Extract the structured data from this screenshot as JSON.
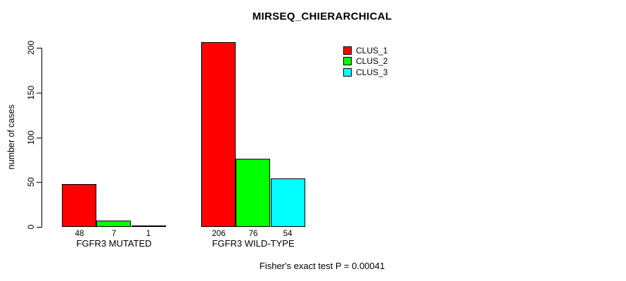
{
  "title": "MIRSEQ_CHIERARCHICAL",
  "ylabel": "number of cases",
  "footer": "Fisher's exact test P = 0.00041",
  "legend": {
    "items": [
      {
        "label": "CLUS_1",
        "color": "#ff0000"
      },
      {
        "label": "CLUS_2",
        "color": "#00ff00"
      },
      {
        "label": "CLUS_3",
        "color": "#00ffff"
      }
    ]
  },
  "colors": {
    "bar_border": "#000000",
    "axis": "#000000",
    "background": "#ffffff"
  },
  "chart_data": {
    "type": "bar",
    "title": "MIRSEQ_CHIERARCHICAL",
    "xlabel": "",
    "ylabel": "number of cases",
    "categories": [
      "FGFR3 MUTATED",
      "FGFR3 WILD-TYPE"
    ],
    "series": [
      {
        "name": "CLUS_1",
        "color": "#ff0000",
        "values": [
          48,
          206
        ]
      },
      {
        "name": "CLUS_2",
        "color": "#00ff00",
        "values": [
          7,
          76
        ]
      },
      {
        "name": "CLUS_3",
        "color": "#00ffff",
        "values": [
          1,
          54
        ]
      }
    ],
    "bar_value_labels": [
      [
        "48",
        "7",
        "1"
      ],
      [
        "206",
        "76",
        "54"
      ]
    ],
    "yticks": [
      0,
      50,
      100,
      150,
      200
    ],
    "ylim": [
      0,
      200
    ],
    "grid": false,
    "legend_position": "top-right",
    "annotation": "Fisher's exact test P = 0.00041"
  }
}
